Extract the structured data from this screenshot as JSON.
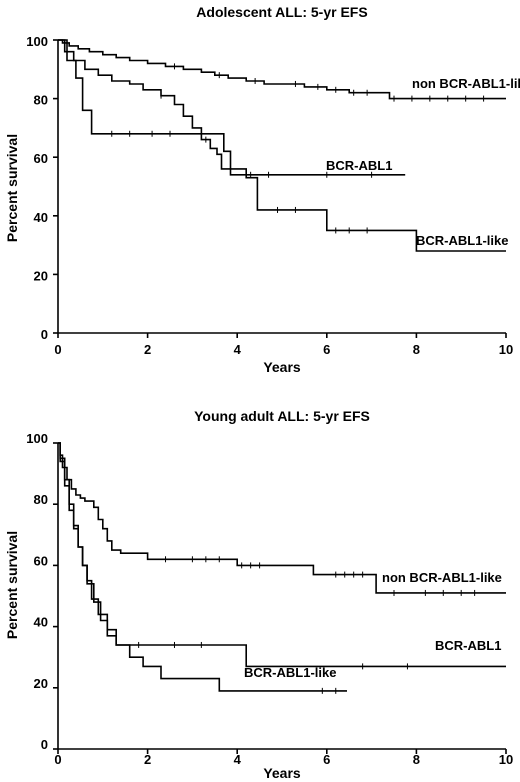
{
  "chart_data": [
    {
      "type": "line",
      "subtype": "kaplan-meier-step",
      "title": "Adolescent ALL: 5-yr EFS",
      "xlabel": "Years",
      "ylabel": "Percent survival",
      "xlim": [
        0,
        10
      ],
      "ylim": [
        0,
        100
      ],
      "xticks": [
        0,
        2,
        4,
        6,
        8,
        10
      ],
      "yticks": [
        0,
        20,
        40,
        60,
        80,
        100
      ],
      "grid": false,
      "legend": "direct labels next to curves",
      "series": [
        {
          "name": "non BCR-ABL1-like",
          "x": [
            0,
            0.1,
            0.25,
            0.45,
            0.7,
            1.0,
            1.3,
            1.6,
            2.0,
            2.4,
            2.8,
            3.2,
            3.5,
            3.8,
            4.2,
            4.6,
            5.0,
            5.5,
            6.0,
            6.5,
            7.2,
            7.4,
            8.0,
            9.0,
            10.0
          ],
          "y": [
            100,
            99,
            98,
            97,
            96,
            95,
            94,
            93,
            92,
            91,
            90,
            89,
            88,
            87,
            86,
            85,
            85,
            84,
            83,
            82,
            82,
            80,
            80,
            80,
            80
          ],
          "censor_x": [
            2.6,
            3.6,
            4.4,
            5.3,
            5.8,
            6.2,
            6.6,
            6.9,
            7.5,
            7.9,
            8.3,
            8.7,
            9.1,
            9.5
          ]
        },
        {
          "name": "BCR-ABL1",
          "x": [
            0,
            0.2,
            0.4,
            0.55,
            0.75,
            2.9,
            3.7,
            3.85,
            7.75
          ],
          "y": [
            100,
            93,
            87,
            76,
            68,
            68,
            62,
            54,
            54
          ],
          "censor_x": [
            1.2,
            1.6,
            2.1,
            2.5,
            4.3,
            4.7,
            6.0,
            7.0
          ]
        },
        {
          "name": "BCR-ABL1-like",
          "x": [
            0,
            0.15,
            0.35,
            0.6,
            0.9,
            1.2,
            1.6,
            1.9,
            2.3,
            2.6,
            2.8,
            3.0,
            3.2,
            3.4,
            3.55,
            3.65,
            4.2,
            4.45,
            5.9,
            6.0,
            7.9,
            8.0,
            10.0
          ],
          "y": [
            100,
            96,
            93,
            90,
            88,
            86,
            85,
            83,
            81,
            78,
            74,
            70,
            66,
            63,
            61,
            56,
            53,
            42,
            42,
            35,
            35,
            28,
            28
          ],
          "censor_x": [
            2.3,
            3.3,
            4.9,
            5.3,
            6.2,
            6.5,
            6.9
          ]
        }
      ],
      "labels": {
        "non_bcr_abl1_like": "non BCR-ABL1-like",
        "bcr_abl1": "BCR-ABL1",
        "bcr_abl1_like": "BCR-ABL1-like"
      }
    },
    {
      "type": "line",
      "subtype": "kaplan-meier-step",
      "title": "Young adult ALL: 5-yr EFS",
      "xlabel": "Years",
      "ylabel": "Percent survival",
      "xlim": [
        0,
        10
      ],
      "ylim": [
        0,
        100
      ],
      "xticks": [
        0,
        2,
        4,
        6,
        8,
        10
      ],
      "yticks": [
        0,
        20,
        40,
        60,
        80,
        100
      ],
      "grid": false,
      "legend": "direct labels next to curves",
      "series": [
        {
          "name": "non BCR-ABL1-like",
          "x": [
            0,
            0.05,
            0.1,
            0.2,
            0.3,
            0.4,
            0.5,
            0.6,
            0.8,
            0.9,
            1.0,
            1.1,
            1.2,
            1.4,
            2.0,
            4.0,
            5.7,
            7.1,
            10.0
          ],
          "y": [
            100,
            96,
            92,
            88,
            85,
            83,
            82,
            81,
            79,
            75,
            72,
            68,
            65,
            64,
            62,
            60,
            57,
            51,
            51
          ],
          "censor_x": [
            2.4,
            3.0,
            3.3,
            3.6,
            4.1,
            4.3,
            4.5,
            6.2,
            6.4,
            6.6,
            6.8,
            7.5,
            8.2,
            8.6,
            9.0,
            9.3
          ]
        },
        {
          "name": "BCR-ABL1",
          "x": [
            0,
            0.05,
            0.15,
            0.25,
            0.35,
            0.45,
            0.55,
            0.65,
            0.8,
            0.95,
            1.1,
            1.3,
            4.2,
            10.0
          ],
          "y": [
            100,
            95,
            88,
            80,
            73,
            66,
            60,
            54,
            48,
            42,
            37,
            34,
            27,
            27
          ],
          "censor_x": [
            1.8,
            2.6,
            3.2,
            6.8,
            7.8
          ]
        },
        {
          "name": "BCR-ABL1-like",
          "x": [
            0,
            0.05,
            0.15,
            0.25,
            0.35,
            0.45,
            0.55,
            0.65,
            0.75,
            0.9,
            1.1,
            1.3,
            1.6,
            1.9,
            2.3,
            3.6,
            6.45
          ],
          "y": [
            100,
            94,
            86,
            78,
            72,
            66,
            60,
            55,
            49,
            44,
            39,
            34,
            30,
            27,
            23,
            19,
            19
          ],
          "censor_x": [
            0.8,
            5.9,
            6.2
          ]
        }
      ],
      "labels": {
        "non_bcr_abl1_like": "non BCR-ABL1-like",
        "bcr_abl1": "BCR-ABL1",
        "bcr_abl1_like": "BCR-ABL1-like"
      }
    }
  ]
}
